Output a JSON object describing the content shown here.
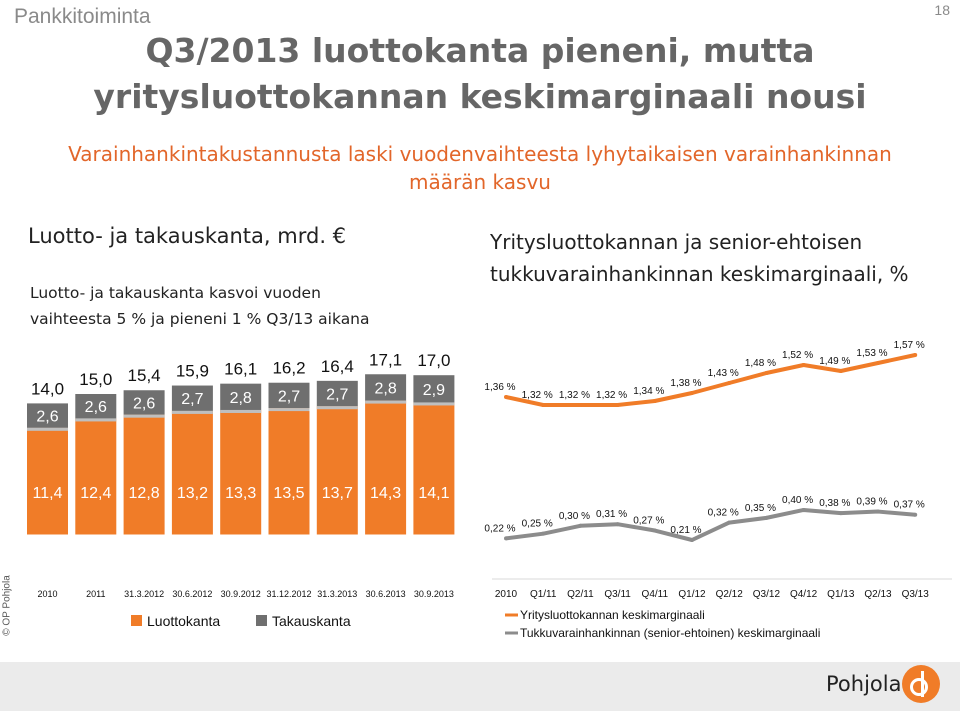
{
  "header": {
    "section": "Pankkitoiminta",
    "page_number": "18",
    "title_line1": "Q3/2013 luottokanta pieneni, mutta",
    "title_line2": "yritysluottokannan keskimarginaali nousi",
    "subtitle_line1": "Varainhankintakustannusta laski vuodenvaihteesta lyhytaikaisen varainhankinnan",
    "subtitle_line2": "määrän kasvu"
  },
  "left": {
    "heading": "Luotto- ja takauskanta, mrd. €",
    "note_line1": "Luotto- ja takauskanta kasvoi vuoden",
    "note_line2": "vaihteesta 5 % ja pieneni 1 % Q3/13 aikana"
  },
  "right": {
    "heading_line1": "Yritysluottokannan ja senior-ehtoisen",
    "heading_line2": "tukkuvarainhankinnan keskimarginaali, %"
  },
  "footer": {
    "copyright": "© OP Pohjola",
    "brand": "Pohjola"
  },
  "colors": {
    "orange": "#f07c28",
    "gray": "#6f6f6f",
    "title": "#666666",
    "subtitle": "#e2662a"
  },
  "chart_data": [
    {
      "type": "bar",
      "stacked": true,
      "categories": [
        "2010",
        "2011",
        "31.3.2012",
        "30.6.2012",
        "30.9.2012",
        "31.12.2012",
        "31.3.2013",
        "30.6.2013",
        "30.9.2013"
      ],
      "series": [
        {
          "name": "Luottokanta",
          "color": "#f07c28",
          "values": [
            11.4,
            12.4,
            12.8,
            13.2,
            13.3,
            13.5,
            13.7,
            14.3,
            14.1
          ],
          "labels": [
            "11,4",
            "12,4",
            "12,8",
            "13,2",
            "13,3",
            "13,5",
            "13,7",
            "14,3",
            "14,1"
          ]
        },
        {
          "name": "Takauskanta",
          "color": "#6f6f6f",
          "values": [
            2.6,
            2.6,
            2.6,
            2.7,
            2.8,
            2.7,
            2.7,
            2.8,
            2.9
          ],
          "labels": [
            "2,6",
            "2,6",
            "2,6",
            "2,7",
            "2,8",
            "2,7",
            "2,7",
            "2,8",
            "2,9"
          ]
        }
      ],
      "totals": [
        "14,0",
        "15,0",
        "15,4",
        "15,9",
        "16,1",
        "16,2",
        "16,4",
        "17,1",
        "17,0"
      ],
      "legend": "bottom"
    },
    {
      "type": "line",
      "categories": [
        "2010",
        "Q1/11",
        "Q2/11",
        "Q3/11",
        "Q4/11",
        "Q1/12",
        "Q2/12",
        "Q3/12",
        "Q4/12",
        "Q1/13",
        "Q2/13",
        "Q3/13"
      ],
      "series": [
        {
          "name": "Yritysluottokannan keskimarginaali",
          "color": "#f07c28",
          "values": [
            1.36,
            1.32,
            1.32,
            1.32,
            1.34,
            1.38,
            1.43,
            1.48,
            1.52,
            1.49,
            1.53,
            1.57
          ],
          "labels": [
            "1,36 %",
            "1,32 %",
            "1,32 %",
            "1,32 %",
            "1,34 %",
            "1,38 %",
            "1,43 %",
            "1,48 %",
            "1,52 %",
            "1,49 %",
            "1,53 %",
            "1,57 %"
          ]
        },
        {
          "name": "Tukkuvarainhankinnan (senior-ehtoinen) keskimarginaali",
          "color": "#8c8c8c",
          "values": [
            0.22,
            0.25,
            0.3,
            0.31,
            0.27,
            0.21,
            0.32,
            0.35,
            0.4,
            0.38,
            0.39,
            0.37
          ],
          "labels": [
            "0,22 %",
            "0,25 %",
            "0,30 %",
            "0,31 %",
            "0,27 %",
            "0,21 %",
            "0,32 %",
            "0,35 %",
            "0,40 %",
            "0,38 %",
            "0,39 %",
            "0,37 %"
          ]
        }
      ],
      "legend": "bottom"
    }
  ]
}
